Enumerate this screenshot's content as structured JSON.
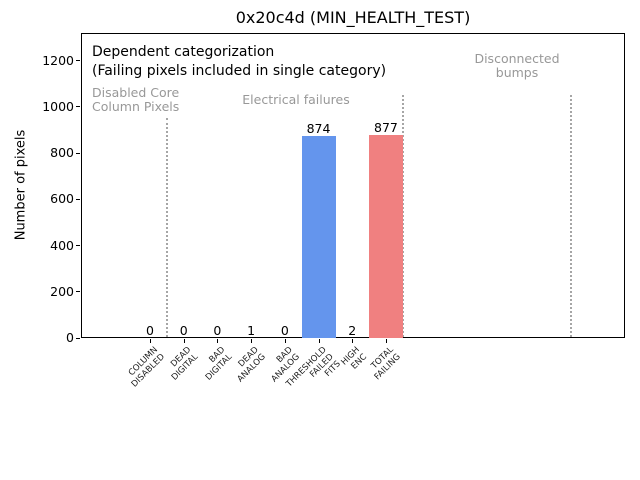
{
  "title": "0x20c4d (MIN_HEALTH_TEST)",
  "annotation": {
    "line1": "Dependent categorization",
    "line2": "(Failing pixels included in single category)"
  },
  "chart_data": {
    "type": "bar",
    "title": "0x20c4d (MIN_HEALTH_TEST)",
    "xlabel": "",
    "ylabel": "Number of pixels",
    "ylim": [
      0,
      1320
    ],
    "yticks": [
      0,
      200,
      400,
      600,
      800,
      1000,
      1200
    ],
    "grid": false,
    "legend": null,
    "categories": [
      [
        "COLUMN",
        "DISABLED"
      ],
      [
        "DEAD",
        "DIGITAL"
      ],
      [
        "BAD",
        "DIGITAL"
      ],
      [
        "DEAD",
        "ANALOG"
      ],
      [
        "BAD",
        "ANALOG"
      ],
      [
        "THRESHOLD",
        "FAILED",
        "FITS"
      ],
      [
        "HIGH",
        "ENC"
      ],
      [
        "TOTAL",
        "FAILING"
      ]
    ],
    "values": [
      0,
      0,
      0,
      1,
      0,
      874,
      2,
      877
    ],
    "value_labels": [
      "0",
      "0",
      "0",
      "1",
      "0",
      "874",
      "2",
      "877"
    ],
    "bar_colors": [
      null,
      null,
      null,
      null,
      null,
      "#6495ED",
      null,
      "#F08080"
    ],
    "section_dividers": [
      0.5,
      7.5,
      12.5
    ],
    "sections": [
      {
        "label_lines": [
          "Disabled Core",
          "Column Pixels"
        ]
      },
      {
        "label_lines": [
          "Electrical failures"
        ]
      },
      {
        "label_lines": [
          "Disconnected",
          "bumps"
        ]
      }
    ],
    "colors": {
      "threshold_failed_fits_bar": "#6495ED",
      "total_failing_bar": "#F08080",
      "section_text": "#989898",
      "divider": "#a6a6a6"
    }
  }
}
